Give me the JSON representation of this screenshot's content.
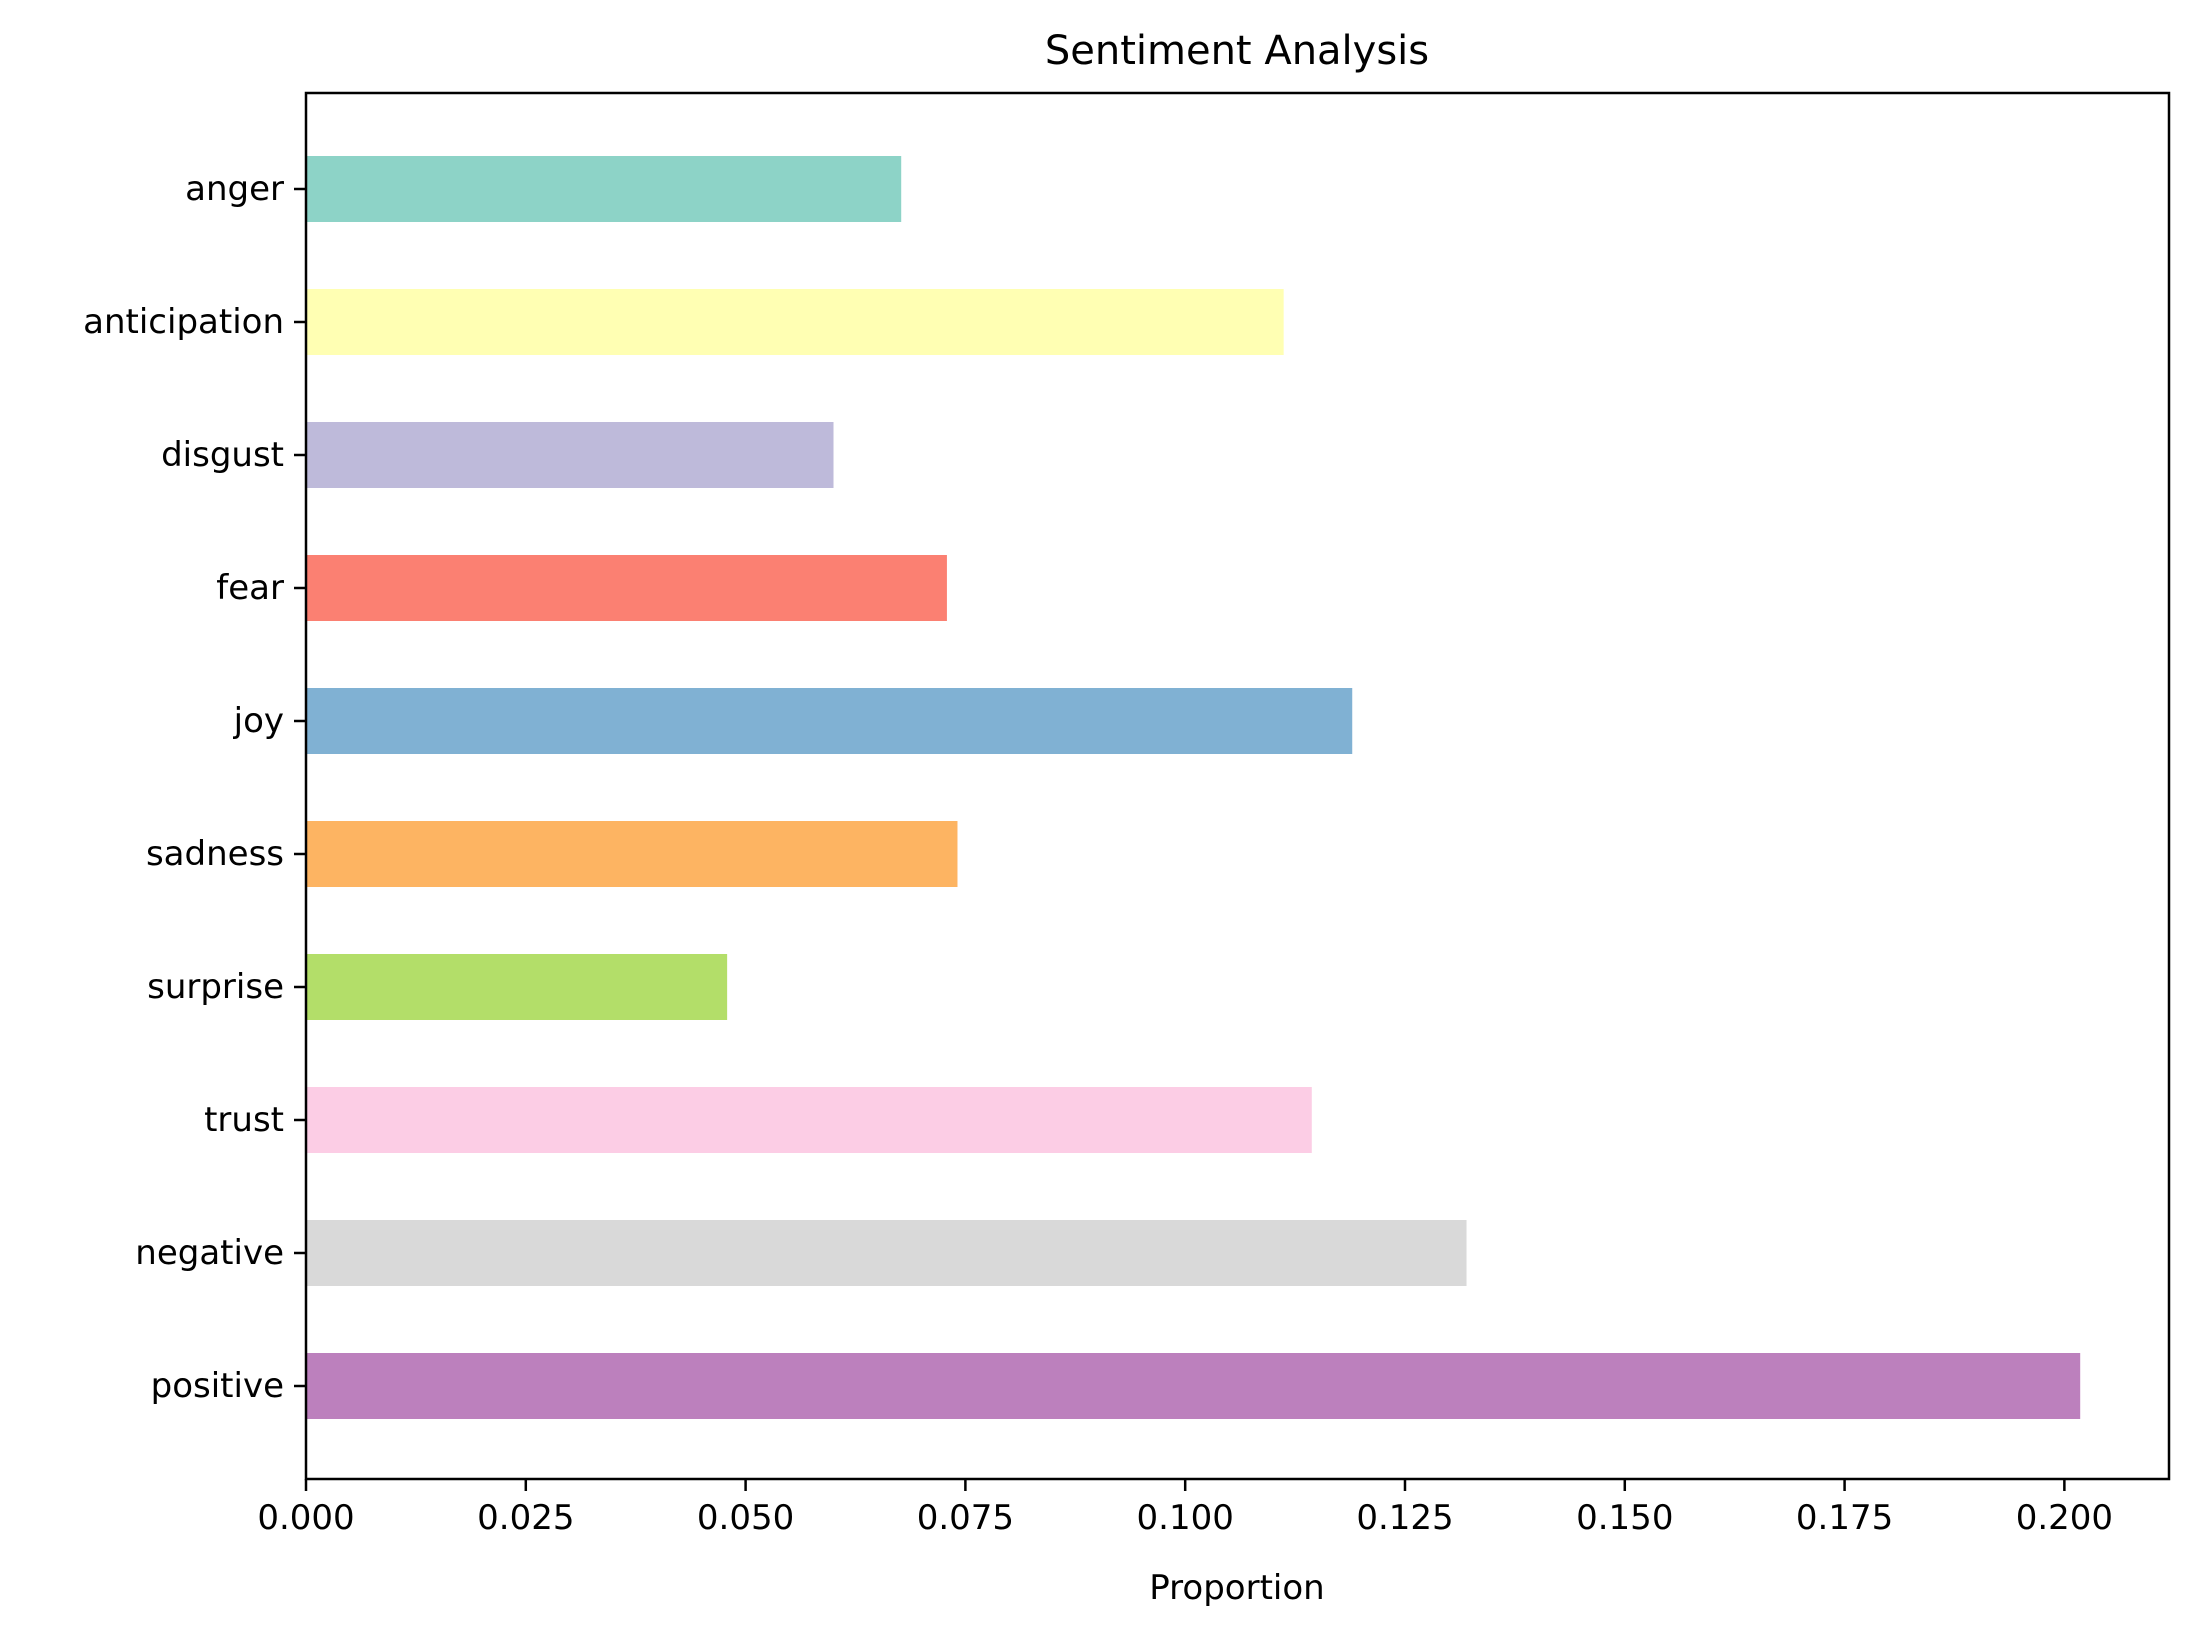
{
  "chart_data": {
    "type": "bar",
    "orientation": "horizontal",
    "title": "Sentiment Analysis",
    "xlabel": "Proportion",
    "ylabel": "",
    "categories": [
      "anger",
      "anticipation",
      "disgust",
      "fear",
      "joy",
      "sadness",
      "surprise",
      "trust",
      "negative",
      "positive"
    ],
    "values": [
      0.0677,
      0.1112,
      0.06,
      0.0729,
      0.119,
      0.0741,
      0.0479,
      0.1144,
      0.132,
      0.2018
    ],
    "colors": [
      "#8dd3c7",
      "#ffffb3",
      "#bebada",
      "#fb8072",
      "#80b1d3",
      "#fdb462",
      "#b3de69",
      "#fccde5",
      "#d9d9d9",
      "#bc80bd"
    ],
    "xlim": [
      0,
      0.2119
    ],
    "xticks": [
      "0.000",
      "0.025",
      "0.050",
      "0.075",
      "0.100",
      "0.125",
      "0.150",
      "0.175",
      "0.200"
    ],
    "legend": "none",
    "grid": false
  }
}
